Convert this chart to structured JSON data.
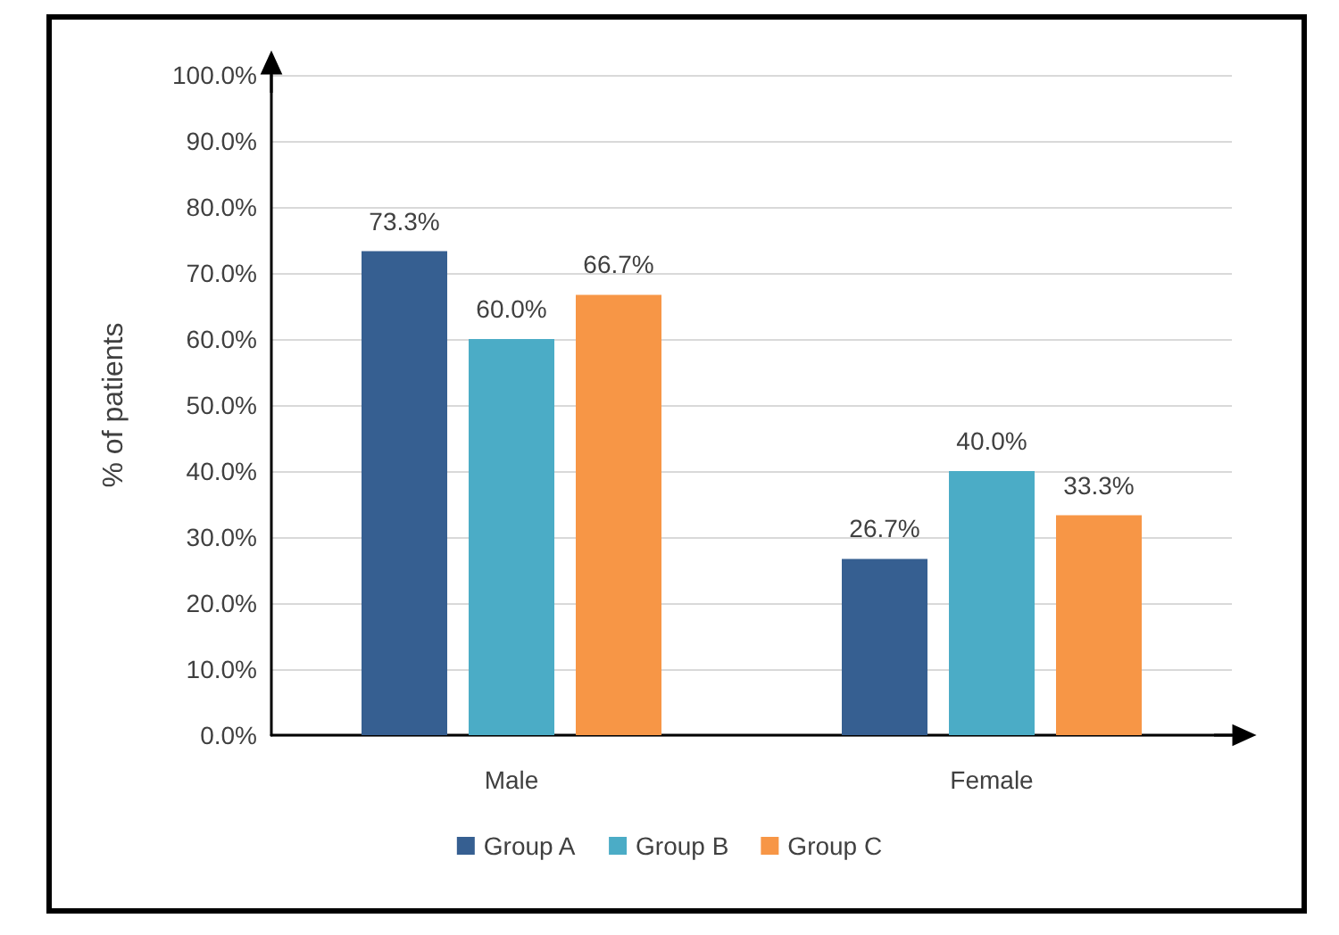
{
  "chart_data": {
    "type": "bar",
    "ylabel": "% of patients",
    "categories": [
      "Male",
      "Female"
    ],
    "series": [
      {
        "name": "Group A",
        "color": "#365f91",
        "values": [
          73.3,
          26.7
        ],
        "value_labels": [
          "73.3%",
          "26.7%"
        ]
      },
      {
        "name": "Group B",
        "color": "#4bacc6",
        "values": [
          60.0,
          40.0
        ],
        "value_labels": [
          "60.0%",
          "40.0%"
        ]
      },
      {
        "name": "Group C",
        "color": "#f79646",
        "values": [
          66.7,
          33.3
        ],
        "value_labels": [
          "66.7%",
          "33.3%"
        ]
      }
    ],
    "ylim": [
      0,
      100
    ],
    "yticks": [
      {
        "value": 0,
        "label": "0.0%"
      },
      {
        "value": 10,
        "label": "10.0%"
      },
      {
        "value": 20,
        "label": "20.0%"
      },
      {
        "value": 30,
        "label": "30.0%"
      },
      {
        "value": 40,
        "label": "40.0%"
      },
      {
        "value": 50,
        "label": "50.0%"
      },
      {
        "value": 60,
        "label": "60.0%"
      },
      {
        "value": 70,
        "label": "70.0%"
      },
      {
        "value": 80,
        "label": "80.0%"
      },
      {
        "value": 90,
        "label": "90.0%"
      },
      {
        "value": 100,
        "label": "100.0%"
      }
    ],
    "grid": true,
    "legend": "bottom"
  }
}
